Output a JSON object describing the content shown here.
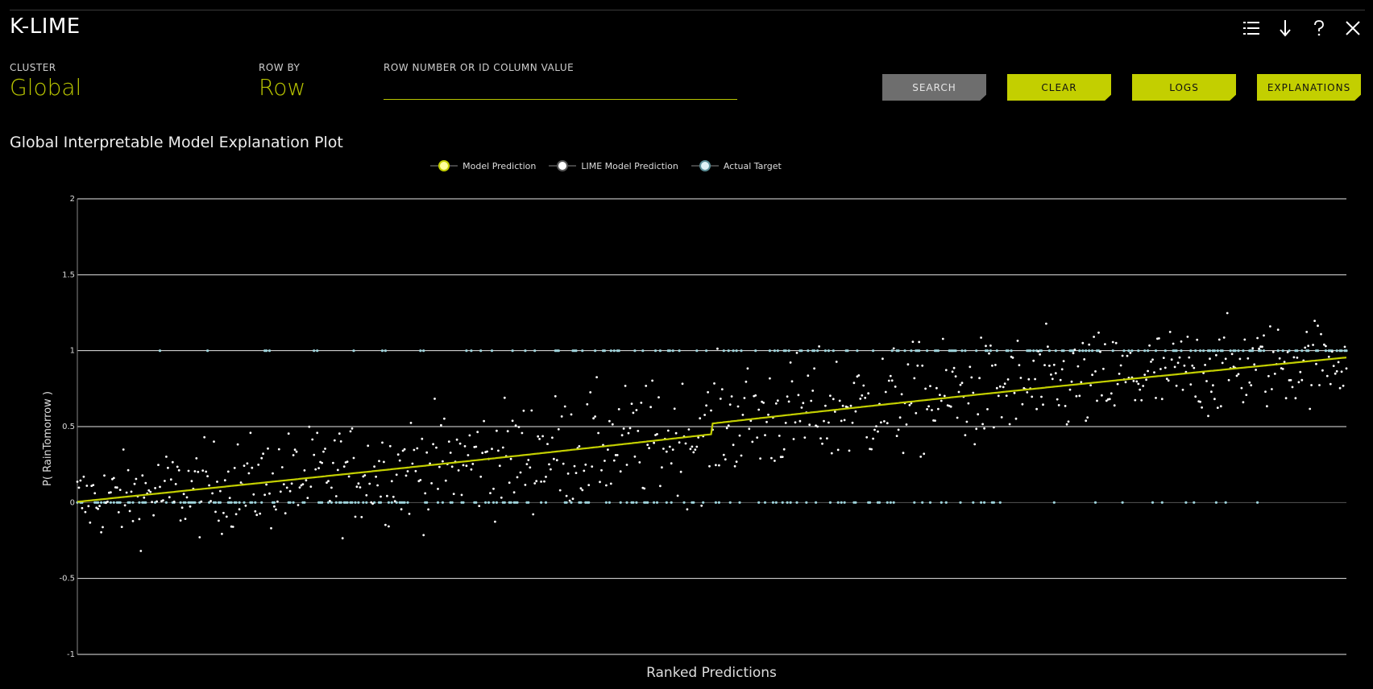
{
  "app": {
    "title": "K-LIME"
  },
  "toolbar": {
    "icons": [
      "list-icon",
      "download-arrow-icon",
      "help-icon",
      "close-icon"
    ]
  },
  "controls": {
    "cluster_label": "CLUSTER",
    "cluster_value": "Global",
    "row_by_label": "ROW BY",
    "row_by_value": "Row",
    "search_label": "ROW NUMBER OR ID COLUMN VALUE",
    "search_value": ""
  },
  "buttons": {
    "search": "SEARCH",
    "clear": "CLEAR",
    "logs": "LOGS",
    "explanations": "EXPLANATIONS"
  },
  "colors": {
    "accent": "#c3cf00",
    "model_prediction": "#c3cf00",
    "lime_prediction": "#ffffff",
    "actual_target": "#9fd4dc"
  },
  "chart_data": {
    "type": "scatter",
    "title": "Global Interpretable Model Explanation Plot",
    "xlabel": "Ranked Predictions",
    "ylabel": "P( RainTomorrow )",
    "ylim": [
      -1,
      2
    ],
    "yticks": [
      "2",
      "1.5",
      "1",
      "0.5",
      "0",
      "-0.5",
      "-1"
    ],
    "grid": true,
    "legend_position": "top-center",
    "series": [
      {
        "name": "Model Prediction",
        "style": "line"
      },
      {
        "name": "LIME Model Prediction",
        "style": "points"
      },
      {
        "name": "Actual Target",
        "style": "points"
      }
    ],
    "n_points": 800
  }
}
